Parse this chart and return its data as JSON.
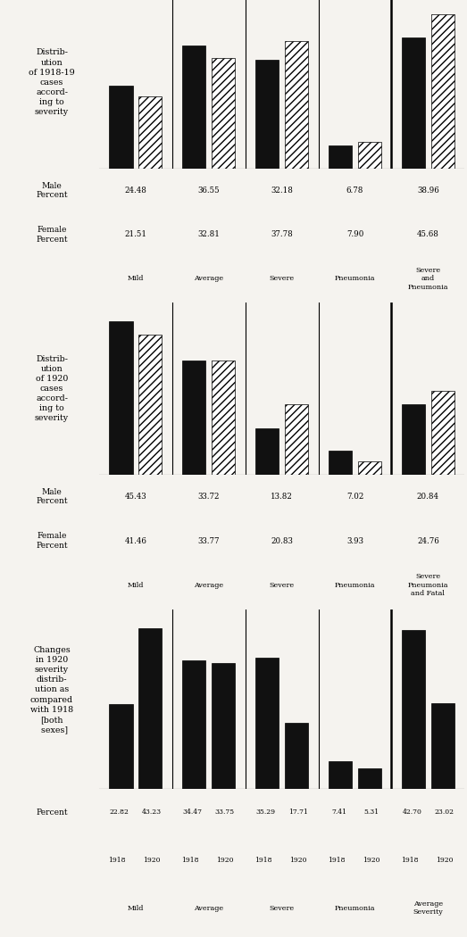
{
  "chart1": {
    "title": "Distrib-\nution\nof 1918-19\ncases\naccord-\ning to\nseverity",
    "categories": [
      "Mild",
      "Average",
      "Severe",
      "Pneumonia",
      "Severe\nand\nPneumonia"
    ],
    "male_pct": [
      24.48,
      36.55,
      32.18,
      6.78,
      38.96
    ],
    "female_pct": [
      21.51,
      32.81,
      37.78,
      7.9,
      45.68
    ]
  },
  "chart2": {
    "title": "Distrib-\nution\nof 1920\ncases\naccord-\ning to\nseverity",
    "categories": [
      "Mild",
      "Average",
      "Severe",
      "Pneumonia",
      "Severe\nPneumonia\nand Fatal"
    ],
    "male_pct": [
      45.43,
      33.72,
      13.82,
      7.02,
      20.84
    ],
    "female_pct": [
      41.46,
      33.77,
      20.83,
      3.93,
      24.76
    ]
  },
  "chart3": {
    "title": "Changes\nin 1920\nseverity\ndistrib-\nution as\ncompared\nwith 1918\n[both\n  sexes]",
    "categories": [
      "Mild",
      "Average",
      "Severe",
      "Pneumonia",
      "Average\nSeverity"
    ],
    "values_1918": [
      22.82,
      34.47,
      35.29,
      7.41,
      42.7
    ],
    "values_1920": [
      43.23,
      33.75,
      17.71,
      5.31,
      23.02
    ]
  },
  "solid_color": "#111111",
  "hatch_color": "#ffffff",
  "hatch_pattern": "////",
  "line_color": "#000000",
  "bg_color": "#f5f3ef"
}
